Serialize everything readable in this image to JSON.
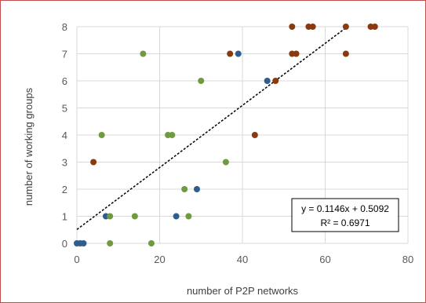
{
  "chart_data": {
    "type": "scatter",
    "title": "",
    "xlabel": "number of P2P networks",
    "ylabel": "number of working groups",
    "xlim": [
      0,
      80
    ],
    "ylim": [
      0,
      8
    ],
    "xticks": [
      0,
      20,
      40,
      60,
      80
    ],
    "yticks": [
      0,
      1,
      2,
      3,
      4,
      5,
      6,
      7,
      8
    ],
    "grid": true,
    "series": [
      {
        "color": "#2e5d8e",
        "points": [
          [
            0,
            0
          ],
          [
            0.8,
            0
          ],
          [
            1.6,
            0
          ],
          [
            7,
            1
          ],
          [
            24,
            1
          ],
          [
            29,
            2
          ],
          [
            39,
            7
          ],
          [
            46,
            6
          ]
        ]
      },
      {
        "color": "#6f9a3f",
        "points": [
          [
            8,
            0
          ],
          [
            18,
            0
          ],
          [
            8,
            1
          ],
          [
            14,
            1
          ],
          [
            27,
            1
          ],
          [
            26,
            2
          ],
          [
            36,
            3
          ],
          [
            6,
            4
          ],
          [
            22,
            4
          ],
          [
            23,
            4
          ],
          [
            30,
            6
          ],
          [
            16,
            7
          ]
        ]
      },
      {
        "color": "#8b3a0e",
        "points": [
          [
            4,
            3
          ],
          [
            43,
            4
          ],
          [
            48,
            6
          ],
          [
            37,
            7
          ],
          [
            52,
            7
          ],
          [
            53,
            7
          ],
          [
            65,
            7
          ],
          [
            52,
            8
          ],
          [
            56,
            8
          ],
          [
            57,
            8
          ],
          [
            65,
            8
          ],
          [
            71,
            8
          ],
          [
            72,
            8
          ]
        ]
      }
    ],
    "trendline": {
      "type": "linear",
      "slope": 0.1146,
      "intercept": 0.5092,
      "x_range": [
        0,
        65
      ],
      "style": "dashed",
      "color": "#000000"
    },
    "annotation": {
      "equation": "y = 0.1146x + 0.5092",
      "r_squared": "R² = 0.6971"
    }
  }
}
